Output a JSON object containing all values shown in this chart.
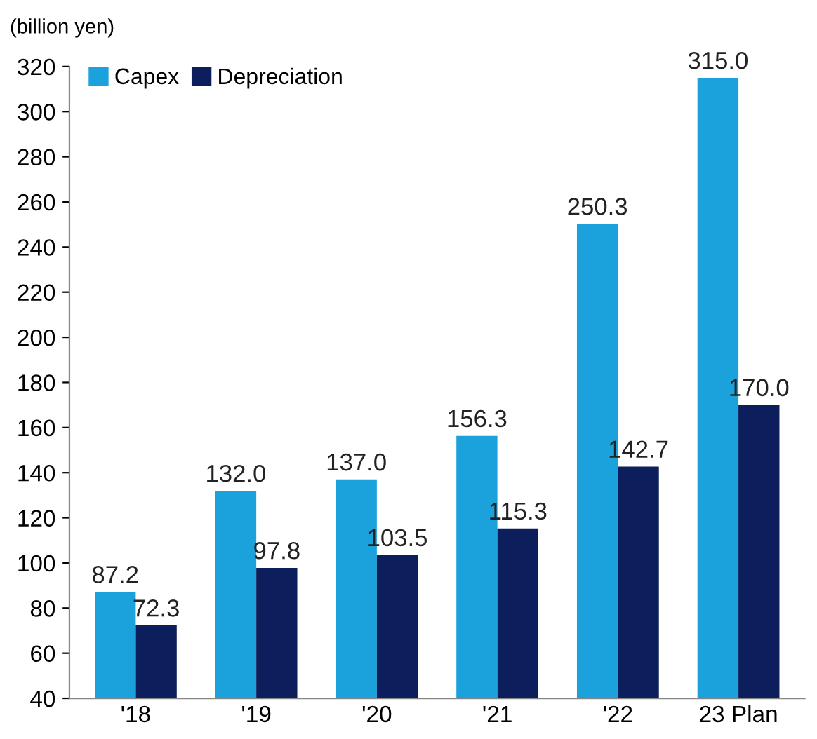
{
  "chart_data": {
    "type": "bar",
    "ylabel": "(billion yen)",
    "categories": [
      "'18",
      "'19",
      "'20",
      "'21",
      "'22",
      "23 Plan"
    ],
    "series": [
      {
        "name": "Capex",
        "color": "#1ba1dc",
        "values": [
          87.2,
          132.0,
          137.0,
          156.3,
          250.3,
          315.0
        ],
        "value_labels": [
          "87.2",
          "132.0",
          "137.0",
          "156.3",
          "250.3",
          "315.0"
        ]
      },
      {
        "name": "Depreciation",
        "color": "#0c1e5b",
        "values": [
          72.3,
          97.8,
          103.5,
          115.3,
          142.7,
          170.0
        ],
        "value_labels": [
          "72.3",
          "97.8",
          "103.5",
          "115.3",
          "142.7",
          "170.0"
        ]
      }
    ],
    "ylim": [
      40,
      320
    ],
    "yticks": [
      40,
      60,
      80,
      100,
      120,
      140,
      160,
      180,
      200,
      220,
      240,
      260,
      280,
      300,
      320
    ],
    "grid": false,
    "legend": "top left"
  }
}
